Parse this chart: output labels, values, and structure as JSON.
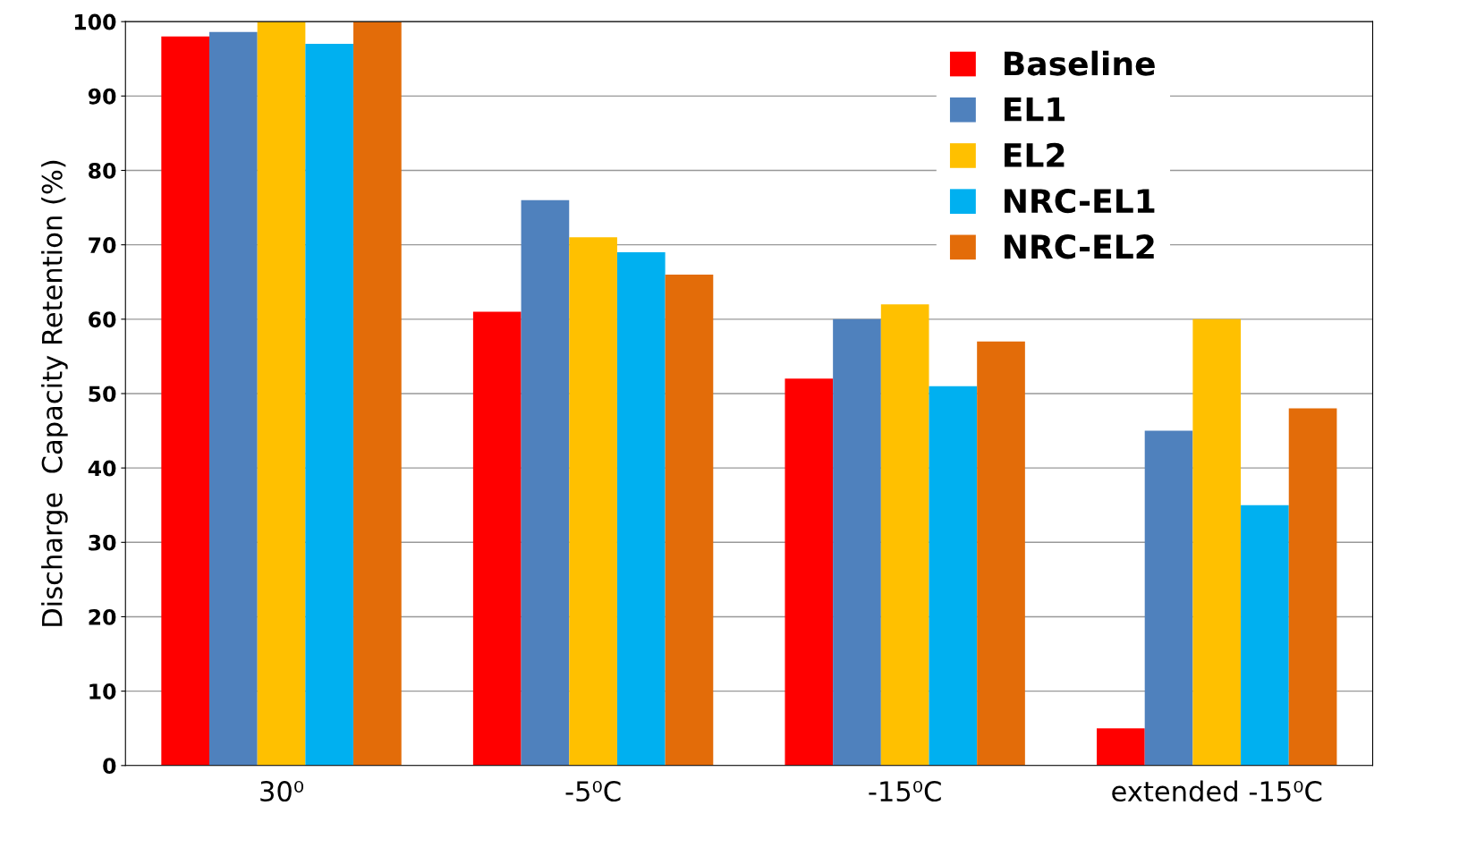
{
  "chart_data": {
    "type": "bar",
    "ylabel": "Discharge  Capacity Retention (%)",
    "categories": [
      "30⁰",
      "-5⁰C",
      "-15⁰C",
      "extended -15⁰C"
    ],
    "series": [
      {
        "name": "Baseline",
        "color": "#ff0000",
        "values": [
          98,
          61,
          52,
          5
        ]
      },
      {
        "name": "EL1",
        "color": "#4f81bd",
        "values": [
          98.6,
          76,
          60,
          45
        ]
      },
      {
        "name": "EL2",
        "color": "#ffc000",
        "values": [
          100,
          71,
          62,
          60
        ]
      },
      {
        "name": "NRC-EL1",
        "color": "#00b0f0",
        "values": [
          97,
          69,
          51,
          35
        ]
      },
      {
        "name": "NRC-EL2",
        "color": "#e36c09",
        "values": [
          100,
          66,
          57,
          48
        ]
      }
    ],
    "ylim": [
      0,
      100
    ],
    "yticks": [
      0,
      10,
      20,
      30,
      40,
      50,
      60,
      70,
      80,
      90,
      100
    ],
    "grid": "y",
    "legend": "top right"
  }
}
